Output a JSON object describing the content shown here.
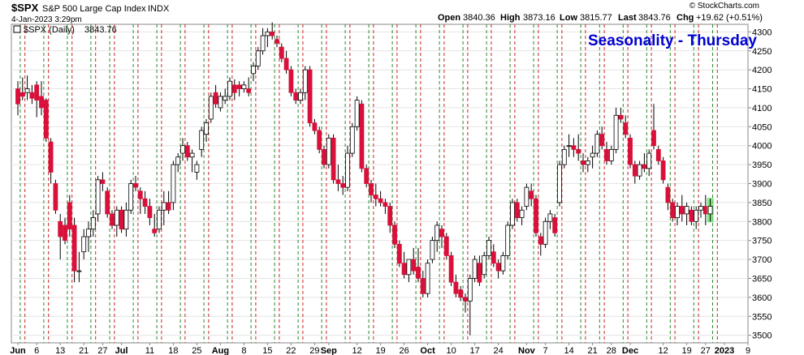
{
  "header": {
    "symbol": "$SPX",
    "name": "S&P 500 Large Cap Index",
    "exchange": "INDX",
    "timestamp": "4-Jan-2023 3:29pm",
    "watermark": "© StockCharts.com",
    "open_label": "Open",
    "open_value": "3840.36",
    "high_label": "High",
    "high_value": "3873.16",
    "low_label": "Low",
    "low_value": "3815.77",
    "last_label": "Last",
    "last_value": "3843.76",
    "chg_label": "Chg",
    "chg_value": "+19.62 (+0.51%)"
  },
  "legend": {
    "series_label": "$SPX (Daily)",
    "series_value": "3843.76"
  },
  "chart_data": {
    "type": "candlestick",
    "title": "Seasonality - Thursday",
    "title_color": "#0000d0",
    "up_color": "#ffffff",
    "down_color": "#d8103a",
    "ylim": [
      3480,
      4320
    ],
    "yticks": [
      3500,
      3550,
      3600,
      3650,
      3700,
      3750,
      3800,
      3850,
      3900,
      3950,
      4000,
      4050,
      4100,
      4150,
      4200,
      4250,
      4300
    ],
    "x_labels": [
      {
        "label": "Jun",
        "day": 0
      },
      {
        "label": "6",
        "day": 4
      },
      {
        "label": "13",
        "day": 9
      },
      {
        "label": "21",
        "day": 14
      },
      {
        "label": "27",
        "day": 18
      },
      {
        "label": "Jul",
        "day": 22
      },
      {
        "label": "11",
        "day": 28
      },
      {
        "label": "18",
        "day": 33
      },
      {
        "label": "25",
        "day": 38
      },
      {
        "label": "Aug",
        "day": 43
      },
      {
        "label": "8",
        "day": 48
      },
      {
        "label": "15",
        "day": 53
      },
      {
        "label": "22",
        "day": 58
      },
      {
        "label": "29",
        "day": 63
      },
      {
        "label": "Sep",
        "day": 66
      },
      {
        "label": "12",
        "day": 72
      },
      {
        "label": "19",
        "day": 77
      },
      {
        "label": "26",
        "day": 82
      },
      {
        "label": "Oct",
        "day": 87
      },
      {
        "label": "10",
        "day": 92
      },
      {
        "label": "17",
        "day": 97
      },
      {
        "label": "24",
        "day": 102
      },
      {
        "label": "Nov",
        "day": 108
      },
      {
        "label": "7",
        "day": 112
      },
      {
        "label": "14",
        "day": 117
      },
      {
        "label": "21",
        "day": 122
      },
      {
        "label": "28",
        "day": 126
      },
      {
        "label": "Dec",
        "day": 130
      },
      {
        "label": "12",
        "day": 137
      },
      {
        "label": "19",
        "day": 142
      },
      {
        "label": "27",
        "day": 146
      },
      {
        "label": "2023",
        "day": 150
      },
      {
        "label": "9",
        "day": 155
      }
    ],
    "week_separators": [
      {
        "day": 0.5,
        "type": "thursday"
      },
      {
        "day": 1.5,
        "type": "friday"
      },
      {
        "day": 5.5,
        "type": "thursday"
      },
      {
        "day": 6.5,
        "type": "friday"
      },
      {
        "day": 10.5,
        "type": "thursday"
      },
      {
        "day": 11.5,
        "type": "friday"
      },
      {
        "day": 15.5,
        "type": "thursday"
      },
      {
        "day": 16.5,
        "type": "friday"
      },
      {
        "day": 19.5,
        "type": "thursday"
      },
      {
        "day": 20.5,
        "type": "friday"
      },
      {
        "day": 24.5,
        "type": "thursday"
      },
      {
        "day": 25.5,
        "type": "friday"
      },
      {
        "day": 29.5,
        "type": "thursday"
      },
      {
        "day": 30.5,
        "type": "friday"
      },
      {
        "day": 34.5,
        "type": "thursday"
      },
      {
        "day": 35.5,
        "type": "friday"
      },
      {
        "day": 39.5,
        "type": "thursday"
      },
      {
        "day": 40.5,
        "type": "friday"
      },
      {
        "day": 44.5,
        "type": "thursday"
      },
      {
        "day": 45.5,
        "type": "friday"
      },
      {
        "day": 49.5,
        "type": "thursday"
      },
      {
        "day": 50.5,
        "type": "friday"
      },
      {
        "day": 54.5,
        "type": "thursday"
      },
      {
        "day": 55.5,
        "type": "friday"
      },
      {
        "day": 59.5,
        "type": "thursday"
      },
      {
        "day": 60.5,
        "type": "friday"
      },
      {
        "day": 64.5,
        "type": "thursday"
      },
      {
        "day": 65.5,
        "type": "friday"
      },
      {
        "day": 69.5,
        "type": "thursday"
      },
      {
        "day": 70.5,
        "type": "friday"
      },
      {
        "day": 74.5,
        "type": "thursday"
      },
      {
        "day": 75.5,
        "type": "friday"
      },
      {
        "day": 79.5,
        "type": "thursday"
      },
      {
        "day": 80.5,
        "type": "friday"
      },
      {
        "day": 84.5,
        "type": "thursday"
      },
      {
        "day": 85.5,
        "type": "friday"
      },
      {
        "day": 89.5,
        "type": "thursday"
      },
      {
        "day": 90.5,
        "type": "friday"
      },
      {
        "day": 94.5,
        "type": "thursday"
      },
      {
        "day": 95.5,
        "type": "friday"
      },
      {
        "day": 99.5,
        "type": "thursday"
      },
      {
        "day": 100.5,
        "type": "friday"
      },
      {
        "day": 104.5,
        "type": "thursday"
      },
      {
        "day": 105.5,
        "type": "friday"
      },
      {
        "day": 109.5,
        "type": "thursday"
      },
      {
        "day": 110.5,
        "type": "friday"
      },
      {
        "day": 114.5,
        "type": "thursday"
      },
      {
        "day": 115.5,
        "type": "friday"
      },
      {
        "day": 119.5,
        "type": "thursday"
      },
      {
        "day": 120.5,
        "type": "friday"
      },
      {
        "day": 123.5,
        "type": "thursday"
      },
      {
        "day": 124.5,
        "type": "friday"
      },
      {
        "day": 128.5,
        "type": "thursday"
      },
      {
        "day": 129.5,
        "type": "friday"
      },
      {
        "day": 133.5,
        "type": "thursday"
      },
      {
        "day": 134.5,
        "type": "friday"
      },
      {
        "day": 138.5,
        "type": "thursday"
      },
      {
        "day": 139.5,
        "type": "friday"
      },
      {
        "day": 143.5,
        "type": "thursday"
      },
      {
        "day": 144.5,
        "type": "friday"
      },
      {
        "day": 147.5,
        "type": "thursday"
      },
      {
        "day": 148.5,
        "type": "friday"
      }
    ],
    "ohlc": [
      [
        4150,
        4170,
        4080,
        4110
      ],
      [
        4140,
        4180,
        4120,
        4130
      ],
      [
        4140,
        4185,
        4120,
        4150
      ],
      [
        4140,
        4160,
        4110,
        4125
      ],
      [
        4160,
        4170,
        4075,
        4120
      ],
      [
        4130,
        4170,
        4080,
        4100
      ],
      [
        4120,
        4125,
        4010,
        4020
      ],
      [
        4010,
        4020,
        3900,
        3930
      ],
      [
        3900,
        3910,
        3820,
        3830
      ],
      [
        3800,
        3820,
        3700,
        3760
      ],
      [
        3790,
        3810,
        3740,
        3750
      ],
      [
        3850,
        3870,
        3760,
        3780
      ],
      [
        3790,
        3810,
        3640,
        3670
      ],
      [
        3670,
        3720,
        3640,
        3670
      ],
      [
        3720,
        3780,
        3700,
        3760
      ],
      [
        3760,
        3800,
        3720,
        3780
      ],
      [
        3780,
        3830,
        3760,
        3810
      ],
      [
        3820,
        3920,
        3800,
        3910
      ],
      [
        3910,
        3930,
        3880,
        3900
      ],
      [
        3880,
        3890,
        3810,
        3820
      ],
      [
        3820,
        3830,
        3780,
        3790
      ],
      [
        3790,
        3840,
        3760,
        3830
      ],
      [
        3830,
        3840,
        3770,
        3780
      ],
      [
        3780,
        3850,
        3760,
        3830
      ],
      [
        3830,
        3910,
        3820,
        3900
      ],
      [
        3900,
        3920,
        3880,
        3890
      ],
      [
        3880,
        3890,
        3820,
        3860
      ],
      [
        3860,
        3880,
        3820,
        3840
      ],
      [
        3840,
        3860,
        3790,
        3810
      ],
      [
        3780,
        3820,
        3760,
        3770
      ],
      [
        3780,
        3840,
        3770,
        3830
      ],
      [
        3830,
        3880,
        3790,
        3850
      ],
      [
        3850,
        3880,
        3820,
        3830
      ],
      [
        3850,
        3960,
        3830,
        3950
      ],
      [
        3950,
        3980,
        3930,
        3970
      ],
      [
        3980,
        4020,
        3960,
        4000
      ],
      [
        4000,
        4010,
        3960,
        3970
      ],
      [
        3970,
        3990,
        3930,
        3980
      ],
      [
        3930,
        3960,
        3910,
        3950
      ],
      [
        3990,
        4050,
        3970,
        4040
      ],
      [
        4030,
        4070,
        4010,
        4060
      ],
      [
        4070,
        4140,
        4060,
        4130
      ],
      [
        4140,
        4160,
        4100,
        4110
      ],
      [
        4100,
        4140,
        4090,
        4130
      ],
      [
        4120,
        4150,
        4110,
        4130
      ],
      [
        4130,
        4180,
        4120,
        4170
      ],
      [
        4160,
        4175,
        4120,
        4140
      ],
      [
        4160,
        4170,
        4130,
        4150
      ],
      [
        4150,
        4170,
        4140,
        4160
      ],
      [
        4150,
        4180,
        4130,
        4140
      ],
      [
        4190,
        4220,
        4170,
        4210
      ],
      [
        4210,
        4260,
        4200,
        4250
      ],
      [
        4250,
        4310,
        4240,
        4290
      ],
      [
        4290,
        4310,
        4260,
        4300
      ],
      [
        4300,
        4325,
        4280,
        4290
      ],
      [
        4280,
        4290,
        4260,
        4270
      ],
      [
        4260,
        4270,
        4220,
        4230
      ],
      [
        4230,
        4250,
        4190,
        4200
      ],
      [
        4200,
        4210,
        4130,
        4140
      ],
      [
        4140,
        4150,
        4110,
        4120
      ],
      [
        4120,
        4150,
        4110,
        4140
      ],
      [
        4140,
        4210,
        4120,
        4200
      ],
      [
        4200,
        4210,
        4050,
        4060
      ],
      [
        4060,
        4070,
        4030,
        4040
      ],
      [
        4040,
        4050,
        3980,
        3990
      ],
      [
        3990,
        4000,
        3940,
        3950
      ],
      [
        3950,
        4030,
        3940,
        4020
      ],
      [
        4020,
        4030,
        3900,
        3910
      ],
      [
        3910,
        3950,
        3880,
        3900
      ],
      [
        3900,
        3920,
        3870,
        3890
      ],
      [
        3890,
        4000,
        3880,
        3980
      ],
      [
        3980,
        4060,
        3970,
        4050
      ],
      [
        4050,
        4130,
        4040,
        4120
      ],
      [
        4110,
        4120,
        3930,
        3940
      ],
      [
        3940,
        3950,
        3890,
        3900
      ],
      [
        3900,
        3910,
        3850,
        3870
      ],
      [
        3870,
        3900,
        3840,
        3860
      ],
      [
        3860,
        3880,
        3840,
        3850
      ],
      [
        3850,
        3860,
        3820,
        3840
      ],
      [
        3840,
        3850,
        3770,
        3790
      ],
      [
        3790,
        3800,
        3730,
        3740
      ],
      [
        3740,
        3750,
        3680,
        3690
      ],
      [
        3690,
        3720,
        3650,
        3660
      ],
      [
        3660,
        3700,
        3640,
        3700
      ],
      [
        3700,
        3730,
        3660,
        3670
      ],
      [
        3680,
        3730,
        3640,
        3650
      ],
      [
        3650,
        3670,
        3600,
        3610
      ],
      [
        3610,
        3700,
        3600,
        3690
      ],
      [
        3700,
        3760,
        3690,
        3750
      ],
      [
        3750,
        3800,
        3720,
        3790
      ],
      [
        3780,
        3790,
        3730,
        3760
      ],
      [
        3760,
        3770,
        3700,
        3710
      ],
      [
        3710,
        3720,
        3630,
        3640
      ],
      [
        3640,
        3660,
        3600,
        3610
      ],
      [
        3620,
        3630,
        3590,
        3600
      ],
      [
        3600,
        3610,
        3560,
        3590
      ],
      [
        3590,
        3660,
        3500,
        3650
      ],
      [
        3650,
        3710,
        3640,
        3700
      ],
      [
        3690,
        3710,
        3630,
        3640
      ],
      [
        3660,
        3720,
        3650,
        3710
      ],
      [
        3710,
        3760,
        3700,
        3750
      ],
      [
        3720,
        3740,
        3680,
        3690
      ],
      [
        3690,
        3700,
        3650,
        3670
      ],
      [
        3670,
        3720,
        3660,
        3710
      ],
      [
        3710,
        3800,
        3700,
        3790
      ],
      [
        3790,
        3860,
        3780,
        3850
      ],
      [
        3850,
        3860,
        3800,
        3810
      ],
      [
        3810,
        3840,
        3790,
        3830
      ],
      [
        3840,
        3900,
        3830,
        3890
      ],
      [
        3880,
        3900,
        3840,
        3860
      ],
      [
        3860,
        3870,
        3760,
        3770
      ],
      [
        3760,
        3770,
        3710,
        3740
      ],
      [
        3740,
        3810,
        3730,
        3800
      ],
      [
        3800,
        3830,
        3780,
        3820
      ],
      [
        3810,
        3820,
        3760,
        3770
      ],
      [
        3850,
        3960,
        3840,
        3950
      ],
      [
        3950,
        4000,
        3940,
        3990
      ],
      [
        4000,
        4030,
        3970,
        4000
      ],
      [
        4000,
        4020,
        3970,
        3990
      ],
      [
        3990,
        4030,
        3960,
        3980
      ],
      [
        3960,
        3980,
        3930,
        3950
      ],
      [
        3950,
        3970,
        3930,
        3960
      ],
      [
        3970,
        4000,
        3940,
        3980
      ],
      [
        3980,
        4040,
        3970,
        4030
      ],
      [
        4030,
        4050,
        3990,
        4000
      ],
      [
        3990,
        4010,
        3950,
        3960
      ],
      [
        3960,
        4000,
        3950,
        3990
      ],
      [
        3990,
        4100,
        3980,
        4080
      ],
      [
        4080,
        4100,
        4060,
        4070
      ],
      [
        4060,
        4080,
        4020,
        4030
      ],
      [
        4020,
        4030,
        3940,
        3950
      ],
      [
        3950,
        3960,
        3900,
        3920
      ],
      [
        3920,
        3960,
        3910,
        3950
      ],
      [
        3950,
        3980,
        3930,
        3940
      ],
      [
        3940,
        3990,
        3920,
        3980
      ],
      [
        4040,
        4110,
        3990,
        4000
      ],
      [
        3990,
        4000,
        3950,
        3960
      ],
      [
        3960,
        3970,
        3900,
        3910
      ],
      [
        3890,
        3900,
        3830,
        3850
      ],
      [
        3850,
        3860,
        3800,
        3810
      ],
      [
        3810,
        3850,
        3790,
        3840
      ],
      [
        3840,
        3870,
        3800,
        3820
      ],
      [
        3820,
        3850,
        3790,
        3840
      ],
      [
        3830,
        3840,
        3790,
        3800
      ],
      [
        3800,
        3840,
        3780,
        3830
      ],
      [
        3830,
        3850,
        3810,
        3840
      ],
      [
        3840,
        3870,
        3790,
        3820
      ],
      [
        3820,
        3860,
        3800,
        3840
      ]
    ],
    "last_bar_highlight": "#6ee06e"
  }
}
